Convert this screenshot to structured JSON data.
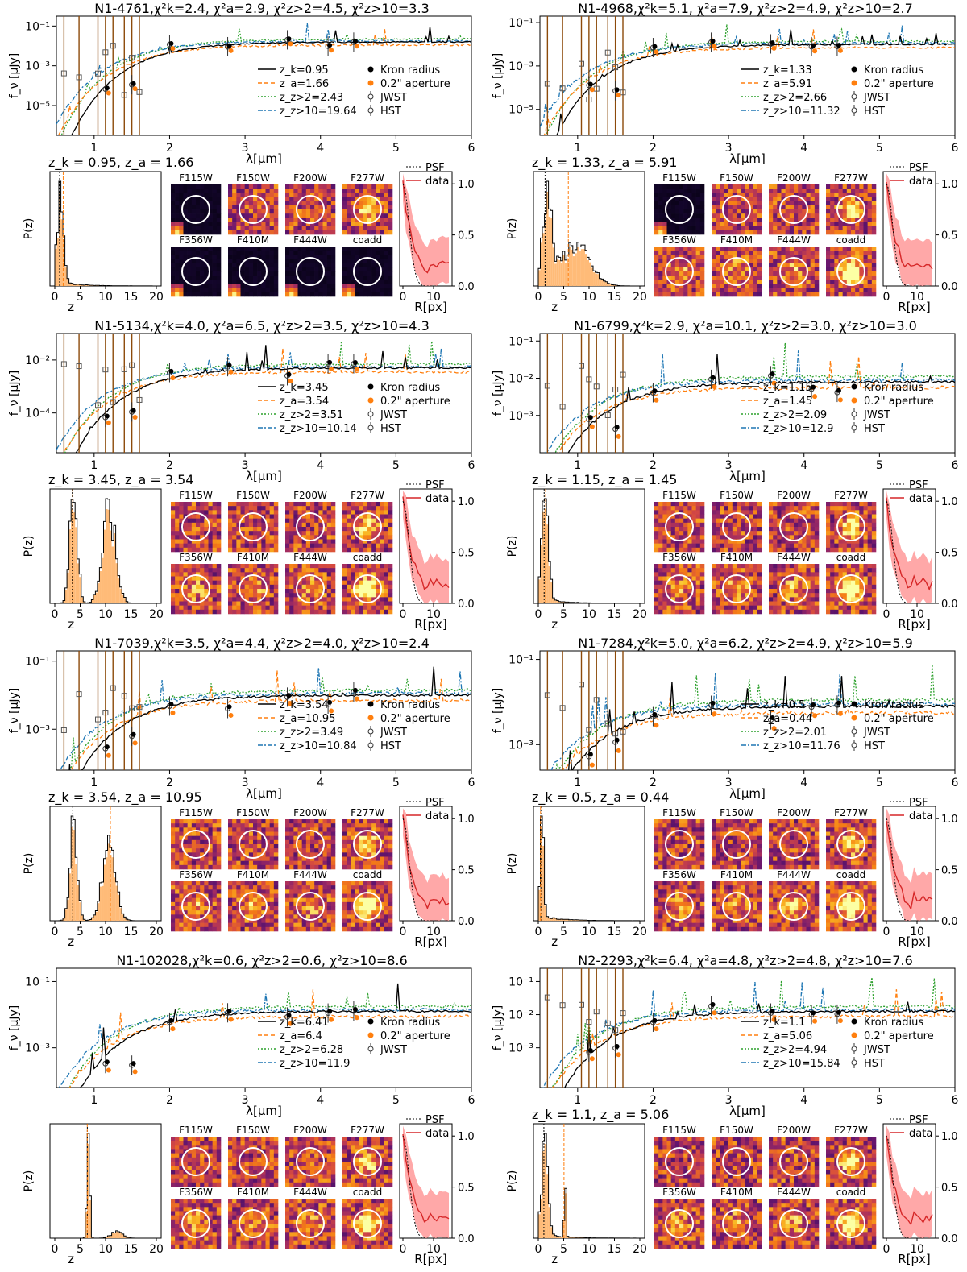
{
  "common": {
    "sed_ylabel": "f_ν [μJy]",
    "sed_xlabel": "λ[μm]",
    "sed_xticks": [
      "1",
      "2",
      "3",
      "4",
      "5",
      "6"
    ],
    "pz_ylabel": "P(z)",
    "pz_xlabel": "z",
    "pz_xticks": [
      "0",
      "5",
      "10",
      "15",
      "20"
    ],
    "prof_xlabel": "R[px]",
    "prof_xticks": [
      "0",
      "10"
    ],
    "prof_yticks": [
      "0.0",
      "0.5",
      "1.0"
    ],
    "prof_legend": [
      "PSF",
      "data"
    ],
    "filters": [
      "F115W",
      "F150W",
      "F200W",
      "F277W",
      "F356W",
      "F410M",
      "F444W",
      "coadd"
    ],
    "legend_right": [
      "Kron radius",
      "0.2\" aperture",
      "JWST",
      "HST"
    ],
    "colors": {
      "kron": "#000000",
      "a": "#ff7f0e",
      "z2": "#2ca02c",
      "z10": "#1f77b4",
      "hst": "#8c4a0a",
      "jwst": "#555555",
      "pz_fill": "#ffbb78",
      "prof": "#d62728",
      "prof_band": "#ff9999"
    }
  },
  "chart_data": [
    {
      "id": "N1-4761",
      "title": "N1-4761,χ²k=2.4, χ²a=2.9, χ²z>2=4.5, χ²z>10=3.3",
      "type": "line",
      "ylog": true,
      "ylim": [
        -6.5,
        -0.5
      ],
      "yticks": [
        {
          "v": -1,
          "t": "10⁻¹"
        },
        {
          "v": -3,
          "t": "10⁻³"
        },
        {
          "v": -5,
          "t": "10⁻⁵"
        }
      ],
      "xlim": [
        0.5,
        6
      ],
      "legend": [
        "z_k=0.95",
        "z_a=1.66",
        "z_z>2=2.43",
        "z_z>10=19.64"
      ],
      "hst": true,
      "zline": "z_k = 0.95, z_a = 1.66",
      "zk": 0.95,
      "za": 1.66,
      "pzmode": "low",
      "bright": [
        0,
        4,
        5,
        6,
        7
      ],
      "seed": 3
    },
    {
      "id": "N1-4968",
      "title": "N1-4968,χ²k=5.1, χ²a=7.9, χ²z>2=4.9, χ²z>10=2.7",
      "type": "line",
      "ylog": true,
      "ylim": [
        -6.2,
        -0.7
      ],
      "yticks": [
        {
          "v": -1,
          "t": "10⁻¹"
        },
        {
          "v": -3,
          "t": "10⁻³"
        },
        {
          "v": -5,
          "t": "10⁻⁵"
        }
      ],
      "xlim": [
        0.5,
        6
      ],
      "legend": [
        "z_k=1.33",
        "z_a=5.91",
        "z_z>2=2.66",
        "z_z>10=11.32"
      ],
      "hst": true,
      "zline": "z_k = 1.33, z_a = 5.91",
      "zk": 1.33,
      "za": 5.91,
      "pzmode": "broad",
      "bright": [
        0
      ],
      "seed": 7
    },
    {
      "id": "N1-5134",
      "title": "N1-5134,χ²k=4.0, χ²a=6.5, χ²z>2=3.5, χ²z>10=4.3",
      "type": "line",
      "ylog": true,
      "ylim": [
        -5.5,
        -1.0
      ],
      "yticks": [
        {
          "v": -2,
          "t": "10⁻²"
        },
        {
          "v": -4,
          "t": "10⁻⁴"
        }
      ],
      "xlim": [
        0.5,
        6
      ],
      "legend": [
        "z_k=3.45",
        "z_a=3.54",
        "z_z>2=3.51",
        "z_z>10=10.14"
      ],
      "hst": true,
      "zline": "z_k = 3.45, z_a = 3.54",
      "zk": 3.45,
      "za": 3.54,
      "pzmode": "bimodal",
      "bright": [],
      "seed": 11
    },
    {
      "id": "N1-6799",
      "title": "N1-6799,χ²k=2.9, χ²a=10.1, χ²z>2=3.0, χ²z>10=3.0",
      "type": "line",
      "ylog": true,
      "ylim": [
        -4.0,
        -0.8
      ],
      "yticks": [
        {
          "v": -1,
          "t": "10⁻¹"
        },
        {
          "v": -2,
          "t": "10⁻²"
        },
        {
          "v": -3,
          "t": "10⁻³"
        }
      ],
      "xlim": [
        0.5,
        6
      ],
      "legend": [
        "z_k=1.15",
        "z_a=1.45",
        "z_z>2=2.09",
        "z_z>10=12.9"
      ],
      "hst": true,
      "zline": "z_k = 1.15, z_a = 1.45",
      "zk": 1.15,
      "za": 1.45,
      "pzmode": "low2",
      "bright": [],
      "seed": 13
    },
    {
      "id": "N1-7039",
      "title": "N1-7039,χ²k=3.5, χ²a=4.4, χ²z>2=4.0, χ²z>10=2.4",
      "type": "line",
      "ylog": true,
      "ylim": [
        -4.2,
        -0.7
      ],
      "yticks": [
        {
          "v": -1,
          "t": "10⁻¹"
        },
        {
          "v": -3,
          "t": "10⁻³"
        }
      ],
      "xlim": [
        0.5,
        6
      ],
      "legend": [
        "z_k=3.54",
        "z_a=10.95",
        "z_z>2=3.49",
        "z_z>10=10.84"
      ],
      "hst": true,
      "zline": "z_k = 3.54, z_a = 10.95",
      "zk": 3.54,
      "za": 10.95,
      "pzmode": "bimodal2",
      "bright": [],
      "seed": 17
    },
    {
      "id": "N1-7284",
      "title": "N1-7284,χ²k=5.0, χ²a=6.2, χ²z>2=4.9, χ²z>10=5.9",
      "type": "line",
      "ylog": true,
      "ylim": [
        -3.6,
        -0.8
      ],
      "yticks": [
        {
          "v": -1,
          "t": "10⁻¹"
        },
        {
          "v": -3,
          "t": "10⁻³"
        }
      ],
      "xlim": [
        0.5,
        6
      ],
      "legend": [
        "z_k=0.5",
        "z_a=0.44",
        "z_z>2=2.01",
        "z_z>10=11.76"
      ],
      "hst": true,
      "zline": "z_k = 0.5, z_a = 0.44",
      "zk": 0.5,
      "za": 0.44,
      "pzmode": "verylow",
      "bright": [],
      "seed": 19
    },
    {
      "id": "N1-102028",
      "title": "N1-102028,χ²k=0.6, χ²z>2=0.6, χ²z>10=8.6",
      "type": "line",
      "ylog": true,
      "ylim": [
        -4.2,
        -0.6
      ],
      "yticks": [
        {
          "v": -1,
          "t": "10⁻¹"
        },
        {
          "v": -3,
          "t": "10⁻³"
        }
      ],
      "xlim": [
        0.5,
        6
      ],
      "legend": [
        "z_k=6.41",
        "z_a=6.4",
        "z_z>2=6.28",
        "z_z>10=11.9"
      ],
      "hst": false,
      "zline": "",
      "zk": 6.41,
      "za": 6.4,
      "pzmode": "spike",
      "bright": [],
      "seed": 23
    },
    {
      "id": "N2-2293",
      "title": "N2-2293,χ²k=6.4, χ²a=4.8, χ²z>2=4.8, χ²z>10=7.6",
      "type": "line",
      "ylog": true,
      "ylim": [
        -4.2,
        -0.6
      ],
      "yticks": [
        {
          "v": -1,
          "t": "10⁻¹"
        },
        {
          "v": -2,
          "t": "10⁻²"
        },
        {
          "v": -3,
          "t": "10⁻³"
        }
      ],
      "xlim": [
        0.5,
        6
      ],
      "legend": [
        "z_k=1.1",
        "z_a=5.06",
        "z_z>2=4.94",
        "z_z>10=15.84"
      ],
      "hst": true,
      "zline": "z_k = 1.1, z_a = 5.06",
      "zk": 1.1,
      "za": 5.06,
      "pzmode": "lowspike",
      "bright": [],
      "seed": 29
    }
  ]
}
